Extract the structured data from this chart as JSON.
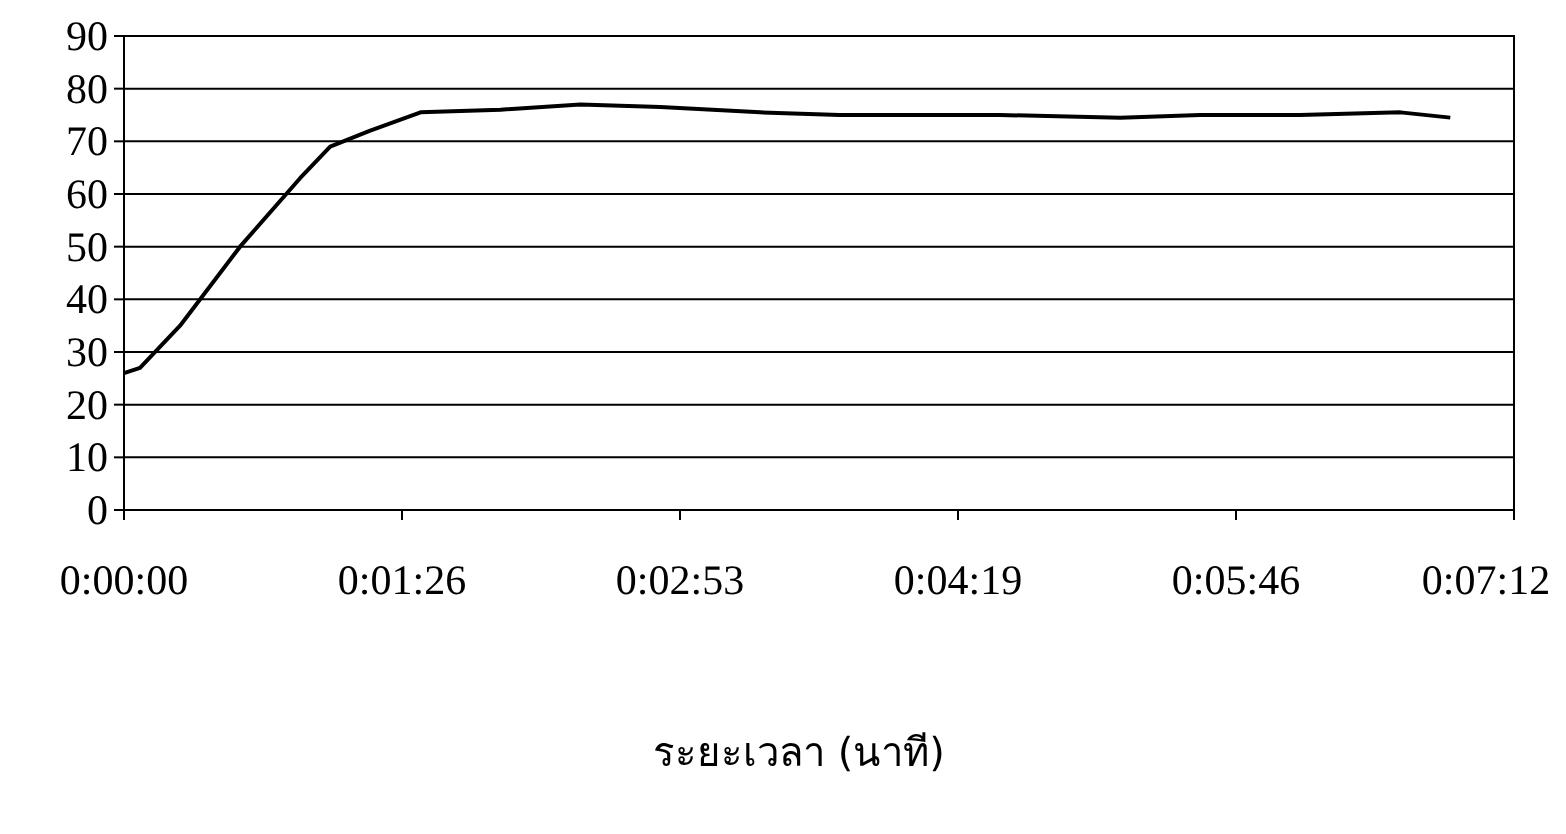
{
  "chart_data": {
    "type": "line",
    "xlabel": "ระยะเวลา (นาที)",
    "x": [
      0,
      0.00138,
      0.00484,
      0.01002,
      0.0152,
      0.0178,
      0.0212,
      0.0256,
      0.0325,
      0.0394,
      0.0463,
      0.0549,
      0.0618,
      0.0756,
      0.086,
      0.0929,
      0.1015,
      0.1102,
      0.1145
    ],
    "values": [
      26,
      27,
      35,
      50,
      63,
      69,
      72,
      75.5,
      76,
      77,
      76.5,
      75.5,
      75,
      75,
      74.5,
      75,
      75,
      75.5,
      74.5
    ],
    "color": "#000000",
    "xlim": [
      0,
      0.12
    ],
    "ylim": [
      0,
      90
    ],
    "xticks": [
      {
        "value": 0,
        "label": "0:00:00"
      },
      {
        "value": 0.024,
        "label": "0:01:26"
      },
      {
        "value": 0.048,
        "label": "0:02:53"
      },
      {
        "value": 0.072,
        "label": "0:04:19"
      },
      {
        "value": 0.096,
        "label": "0:05:46"
      },
      {
        "value": 0.12,
        "label": "0:07:12"
      }
    ],
    "yticks": [
      0,
      10,
      20,
      30,
      40,
      50,
      60,
      70,
      80,
      90
    ],
    "grid": "y"
  }
}
